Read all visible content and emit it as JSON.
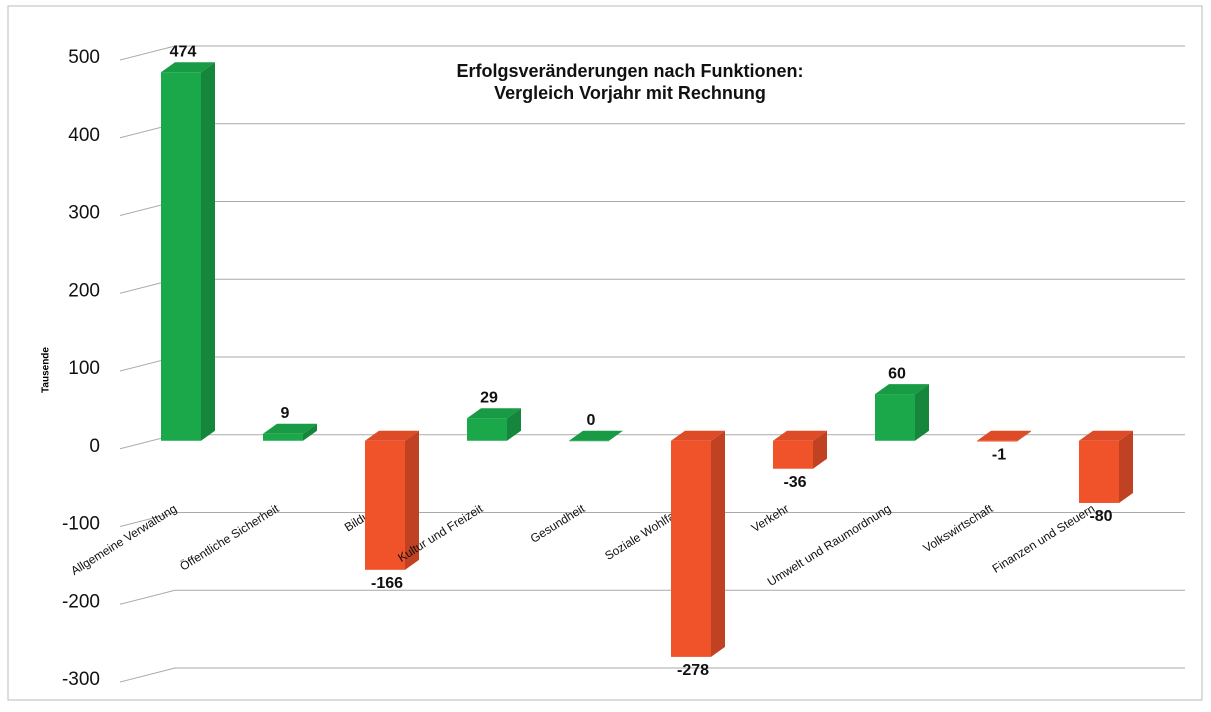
{
  "chart_data": {
    "type": "bar3d",
    "title": [
      "Erfolgsveränderungen nach Funktionen:",
      "Vergleich Vorjahr mit Rechnung"
    ],
    "ylabel": "Tausende",
    "categories": [
      "Allgemeine Verwaltung",
      "Öffentliche Sicherheit",
      "Bildung",
      "Kultur und Freizeit",
      "Gesundheit",
      "Soziale Wohlfahrt",
      "Verkehr",
      "Umwelt und Raumordnung",
      "Volkswirtschaft",
      "Finanzen und Steuern"
    ],
    "values": [
      474,
      9,
      -166,
      29,
      0,
      -278,
      -36,
      60,
      -1,
      -80
    ],
    "positive_color": "#1aa84a",
    "negative_color": "#f0522a",
    "ylim": [
      -300,
      500
    ],
    "yticks": [
      -300,
      -200,
      -100,
      0,
      100,
      200,
      300,
      400,
      500
    ],
    "grid": true
  }
}
